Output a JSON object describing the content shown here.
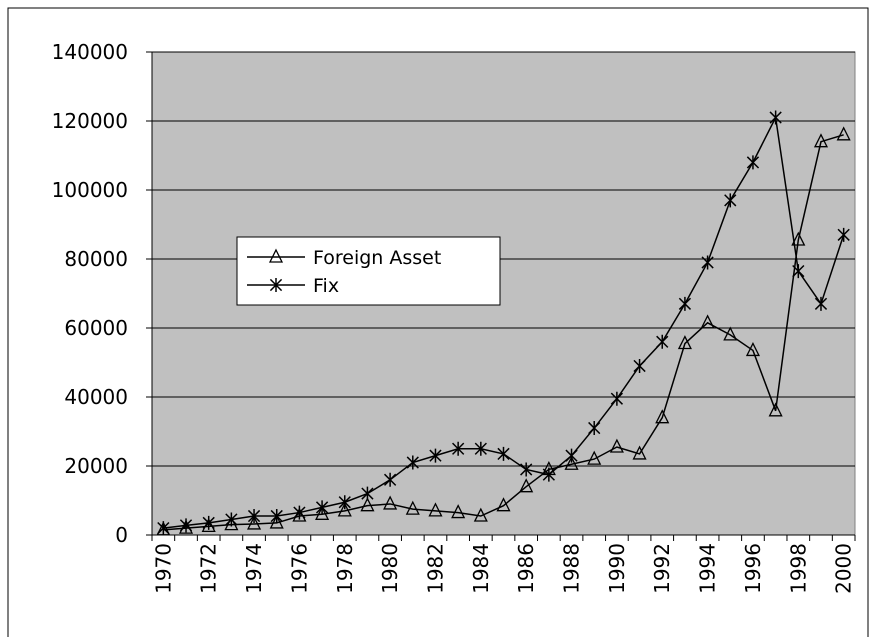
{
  "chart_data": {
    "type": "line",
    "categories": [
      "1970",
      null,
      "1972",
      null,
      "1974",
      null,
      "1976",
      null,
      "1978",
      null,
      "1980",
      null,
      "1982",
      null,
      "1984",
      null,
      "1986",
      null,
      "1988",
      null,
      "1990",
      null,
      "1992",
      null,
      "1994",
      null,
      "1996",
      null,
      "1998",
      null,
      "2000"
    ],
    "series": [
      {
        "name": "Foreign Asset",
        "color": "#000000",
        "marker": "triangle",
        "values": [
          1500,
          2000,
          2500,
          3000,
          3200,
          3500,
          5500,
          6000,
          7000,
          8500,
          9000,
          7500,
          7000,
          6500,
          5500,
          8500,
          14000,
          19000,
          20500,
          22000,
          25500,
          23500,
          34000,
          55500,
          61500,
          58000,
          53500,
          36000,
          85500,
          114000,
          116000
        ]
      },
      {
        "name": "Fix",
        "color": "#000000",
        "marker": "asterisk",
        "values": [
          2000,
          2800,
          3500,
          4500,
          5500,
          5500,
          6500,
          8000,
          9500,
          12000,
          16000,
          21000,
          23000,
          25000,
          25000,
          23500,
          19000,
          17500,
          23000,
          31000,
          39500,
          49000,
          56000,
          67000,
          79000,
          97000,
          108000,
          121000,
          76500,
          67000,
          87000
        ]
      }
    ],
    "ylim": [
      0,
      140000
    ],
    "yticks": [
      0,
      20000,
      40000,
      60000,
      80000,
      100000,
      120000,
      140000
    ],
    "grid": true,
    "legend": "left",
    "background": "#c0c0c0"
  }
}
